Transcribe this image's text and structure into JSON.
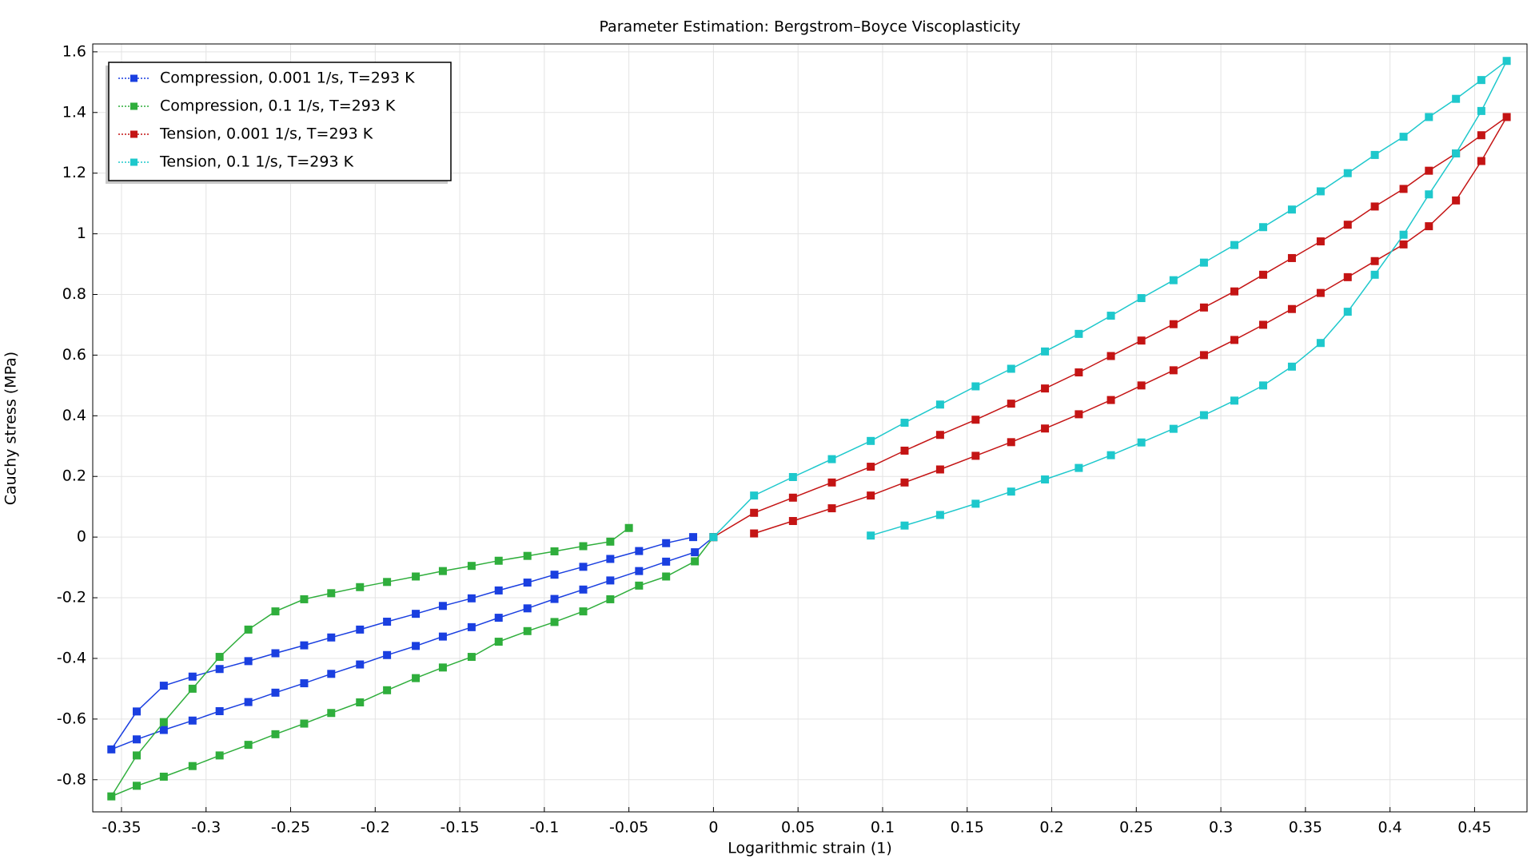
{
  "chart_data": {
    "type": "line",
    "title": "Parameter Estimation: Bergstrom–Boyce Viscoplasticity",
    "x_label": "Logarithmic strain (1)",
    "y_label": "Cauchy stress (MPa)",
    "xlim": [
      -0.367,
      0.481
    ],
    "ylim": [
      -0.906,
      1.626
    ],
    "xticks": [
      -0.35,
      -0.3,
      -0.25,
      -0.2,
      -0.15,
      -0.1,
      -0.05,
      0,
      0.05,
      0.1,
      0.15,
      0.2,
      0.25,
      0.3,
      0.35,
      0.4,
      0.45
    ],
    "yticks": [
      -0.8,
      -0.6,
      -0.4,
      -0.2,
      0,
      0.2,
      0.4,
      0.6,
      0.8,
      1,
      1.2,
      1.4,
      1.6
    ],
    "grid": true,
    "legend": "upper left",
    "series": [
      {
        "name": "Compression, 0.001 1/s, T=293 K",
        "color": "#1a3fe0",
        "x": [
          0,
          -0.011,
          -0.028,
          -0.044,
          -0.061,
          -0.077,
          -0.094,
          -0.11,
          -0.127,
          -0.143,
          -0.16,
          -0.176,
          -0.193,
          -0.209,
          -0.226,
          -0.242,
          -0.259,
          -0.275,
          -0.292,
          -0.308,
          -0.325,
          -0.341,
          -0.356,
          -0.341,
          -0.325,
          -0.308,
          -0.292,
          -0.275,
          -0.259,
          -0.242,
          -0.226,
          -0.209,
          -0.193,
          -0.176,
          -0.16,
          -0.143,
          -0.127,
          -0.11,
          -0.094,
          -0.077,
          -0.061,
          -0.044,
          -0.028,
          -0.012
        ],
        "values": [
          0,
          -0.05,
          -0.081,
          -0.112,
          -0.143,
          -0.173,
          -0.204,
          -0.235,
          -0.266,
          -0.297,
          -0.328,
          -0.359,
          -0.389,
          -0.42,
          -0.451,
          -0.482,
          -0.513,
          -0.544,
          -0.574,
          -0.605,
          -0.636,
          -0.667,
          -0.7,
          -0.575,
          -0.49,
          -0.46,
          -0.435,
          -0.409,
          -0.383,
          -0.357,
          -0.331,
          -0.305,
          -0.279,
          -0.253,
          -0.227,
          -0.202,
          -0.176,
          -0.15,
          -0.124,
          -0.098,
          -0.072,
          -0.046,
          -0.02,
          0.0
        ]
      },
      {
        "name": "Compression, 0.1 1/s, T=293 K",
        "color": "#2fae3c",
        "x": [
          0,
          -0.011,
          -0.028,
          -0.044,
          -0.061,
          -0.077,
          -0.094,
          -0.11,
          -0.127,
          -0.143,
          -0.16,
          -0.176,
          -0.193,
          -0.209,
          -0.226,
          -0.242,
          -0.259,
          -0.275,
          -0.292,
          -0.308,
          -0.325,
          -0.341,
          -0.356,
          -0.341,
          -0.325,
          -0.308,
          -0.292,
          -0.275,
          -0.259,
          -0.242,
          -0.226,
          -0.209,
          -0.193,
          -0.176,
          -0.16,
          -0.143,
          -0.127,
          -0.11,
          -0.094,
          -0.077,
          -0.061,
          -0.05
        ],
        "values": [
          0,
          -0.08,
          -0.13,
          -0.16,
          -0.205,
          -0.245,
          -0.28,
          -0.31,
          -0.345,
          -0.395,
          -0.43,
          -0.465,
          -0.505,
          -0.545,
          -0.58,
          -0.615,
          -0.65,
          -0.685,
          -0.72,
          -0.755,
          -0.79,
          -0.82,
          -0.855,
          -0.72,
          -0.61,
          -0.5,
          -0.395,
          -0.305,
          -0.245,
          -0.205,
          -0.185,
          -0.165,
          -0.148,
          -0.13,
          -0.112,
          -0.095,
          -0.078,
          -0.062,
          -0.047,
          -0.03,
          -0.015,
          0.03
        ]
      },
      {
        "name": "Tension, 0.001 1/s, T=293 K",
        "color": "#c41414",
        "x": [
          0,
          0.024,
          0.047,
          0.07,
          0.093,
          0.113,
          0.134,
          0.155,
          0.176,
          0.196,
          0.216,
          0.235,
          0.253,
          0.272,
          0.29,
          0.308,
          0.325,
          0.342,
          0.359,
          0.375,
          0.391,
          0.408,
          0.423,
          0.439,
          0.454,
          0.469,
          0.454,
          0.439,
          0.423,
          0.408,
          0.391,
          0.375,
          0.359,
          0.342,
          0.325,
          0.308,
          0.29,
          0.272,
          0.253,
          0.235,
          0.216,
          0.196,
          0.176,
          0.155,
          0.134,
          0.113,
          0.093,
          0.07,
          0.047,
          0.024
        ],
        "values": [
          0,
          0.08,
          0.13,
          0.18,
          0.232,
          0.285,
          0.337,
          0.387,
          0.44,
          0.49,
          0.543,
          0.597,
          0.648,
          0.702,
          0.757,
          0.81,
          0.865,
          0.92,
          0.975,
          1.03,
          1.09,
          1.148,
          1.208,
          1.265,
          1.325,
          1.385,
          1.24,
          1.11,
          1.025,
          0.965,
          0.91,
          0.857,
          0.805,
          0.752,
          0.7,
          0.65,
          0.6,
          0.55,
          0.5,
          0.452,
          0.405,
          0.358,
          0.313,
          0.268,
          0.223,
          0.18,
          0.137,
          0.095,
          0.053,
          0.012
        ]
      },
      {
        "name": "Tension, 0.1 1/s, T=293 K",
        "color": "#1ec8cc",
        "x": [
          0,
          0.024,
          0.047,
          0.07,
          0.093,
          0.113,
          0.134,
          0.155,
          0.176,
          0.196,
          0.216,
          0.235,
          0.253,
          0.272,
          0.29,
          0.308,
          0.325,
          0.342,
          0.359,
          0.375,
          0.391,
          0.408,
          0.423,
          0.439,
          0.454,
          0.469,
          0.454,
          0.439,
          0.423,
          0.408,
          0.391,
          0.375,
          0.359,
          0.342,
          0.325,
          0.308,
          0.29,
          0.272,
          0.253,
          0.235,
          0.216,
          0.196,
          0.176,
          0.155,
          0.134,
          0.113,
          0.093
        ],
        "values": [
          0,
          0.137,
          0.198,
          0.257,
          0.317,
          0.377,
          0.437,
          0.497,
          0.555,
          0.612,
          0.67,
          0.73,
          0.788,
          0.847,
          0.905,
          0.963,
          1.022,
          1.08,
          1.14,
          1.2,
          1.26,
          1.32,
          1.385,
          1.445,
          1.507,
          1.57,
          1.405,
          1.265,
          1.13,
          0.997,
          0.865,
          0.743,
          0.64,
          0.562,
          0.5,
          0.45,
          0.402,
          0.357,
          0.312,
          0.27,
          0.228,
          0.19,
          0.15,
          0.11,
          0.073,
          0.038,
          0.005
        ]
      }
    ]
  }
}
